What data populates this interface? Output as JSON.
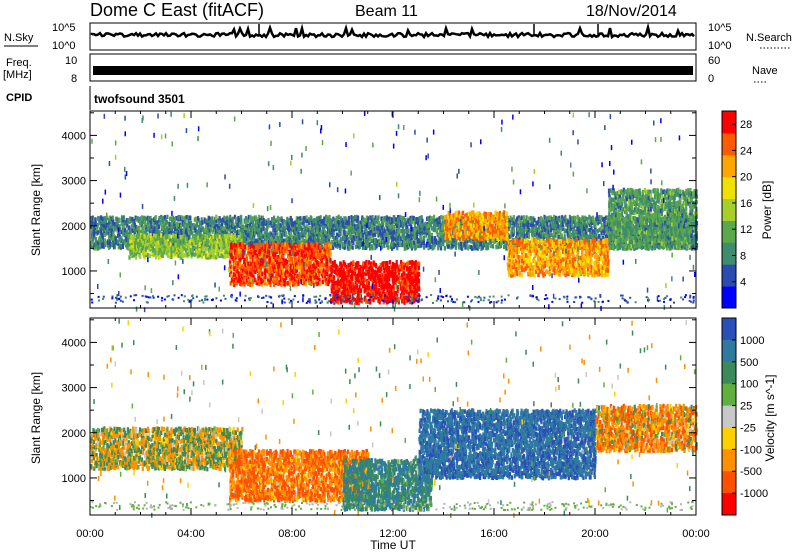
{
  "header": {
    "title": "Dome C East (fitACF)",
    "beam": "Beam 11",
    "date": "18/Nov/2014"
  },
  "noise_panel": {
    "left_label": "N.Sky",
    "right_label": "N.Search",
    "y_ticks": [
      "10^5",
      "10^0"
    ]
  },
  "freq_panel": {
    "left_label_line1": "Freq.",
    "left_label_line2": "[MHz]",
    "left_ticks": [
      "10",
      "8"
    ],
    "right_label": "Nave",
    "right_ticks": [
      "60",
      "0"
    ]
  },
  "cpid_panel": {
    "label": "CPID",
    "program": "twofsound 3501"
  },
  "colors": {
    "power": [
      "#0000ff",
      "#2a4bb0",
      "#3f8c6e",
      "#5aa84a",
      "#a6cf2a",
      "#f0e000",
      "#ffa500",
      "#ff5a00",
      "#ff0000"
    ],
    "velocity": [
      "#2b4fb8",
      "#2f7aa0",
      "#3a8a5a",
      "#60b040",
      "#c8c8c8",
      "#ffd000",
      "#ff9000",
      "#ff5000",
      "#ff0000"
    ],
    "ground_scatter": "#b4b4b4"
  },
  "chart_data": [
    {
      "type": "heatmap",
      "title": "",
      "xlabel": "",
      "ylabel": "Slant Range [km]",
      "x_ticks": [
        "00:00",
        "04:00",
        "08:00",
        "12:00",
        "16:00",
        "20:00",
        "00:00"
      ],
      "xlim_hours": [
        0,
        24
      ],
      "y_ticks": [
        1000,
        2000,
        3000,
        4000
      ],
      "ylim": [
        180,
        4540
      ],
      "colorbar": {
        "label": "Power [dB]",
        "ticks": [
          4,
          8,
          12,
          16,
          20,
          24,
          28
        ],
        "range": [
          0,
          30
        ]
      },
      "echo_regions": [
        {
          "t0": 0.0,
          "t1": 24.0,
          "r0": 1500,
          "r1": 2200,
          "value": 8
        },
        {
          "t0": 1.5,
          "t1": 6.0,
          "r0": 1300,
          "r1": 1800,
          "value": 14
        },
        {
          "t0": 5.5,
          "t1": 9.5,
          "r0": 700,
          "r1": 1600,
          "value": 26
        },
        {
          "t0": 9.5,
          "t1": 13.0,
          "r0": 300,
          "r1": 1200,
          "value": 29
        },
        {
          "t0": 14.0,
          "t1": 16.5,
          "r0": 1700,
          "r1": 2300,
          "value": 22
        },
        {
          "t0": 16.5,
          "t1": 20.5,
          "r0": 900,
          "r1": 1700,
          "value": 22
        },
        {
          "t0": 20.5,
          "t1": 24.0,
          "r0": 1500,
          "r1": 2800,
          "value": 10
        }
      ]
    },
    {
      "type": "heatmap",
      "title": "",
      "xlabel": "Time UT",
      "ylabel": "Slant Range [km]",
      "x_ticks": [
        "00:00",
        "04:00",
        "08:00",
        "12:00",
        "16:00",
        "20:00",
        "00:00"
      ],
      "xlim_hours": [
        0,
        24
      ],
      "y_ticks": [
        1000,
        2000,
        3000,
        4000
      ],
      "ylim": [
        180,
        4540
      ],
      "colorbar": {
        "label": "Velocity [m s^-1]",
        "ticks": [
          1000,
          500,
          100,
          25,
          -25,
          -100,
          -500,
          -1000
        ]
      },
      "echo_regions": [
        {
          "t0": 0.0,
          "t1": 6.0,
          "r0": 1200,
          "r1": 2100,
          "value": 0
        },
        {
          "t0": 5.5,
          "t1": 11.0,
          "r0": 500,
          "r1": 1600,
          "value": -300
        },
        {
          "t0": 10.0,
          "t1": 13.5,
          "r0": 300,
          "r1": 1400,
          "value": 300
        },
        {
          "t0": 13.0,
          "t1": 20.0,
          "r0": 1000,
          "r1": 2500,
          "value": 700
        },
        {
          "t0": 20.0,
          "t1": 24.0,
          "r0": 1600,
          "r1": 2600,
          "value": -200
        }
      ]
    }
  ]
}
